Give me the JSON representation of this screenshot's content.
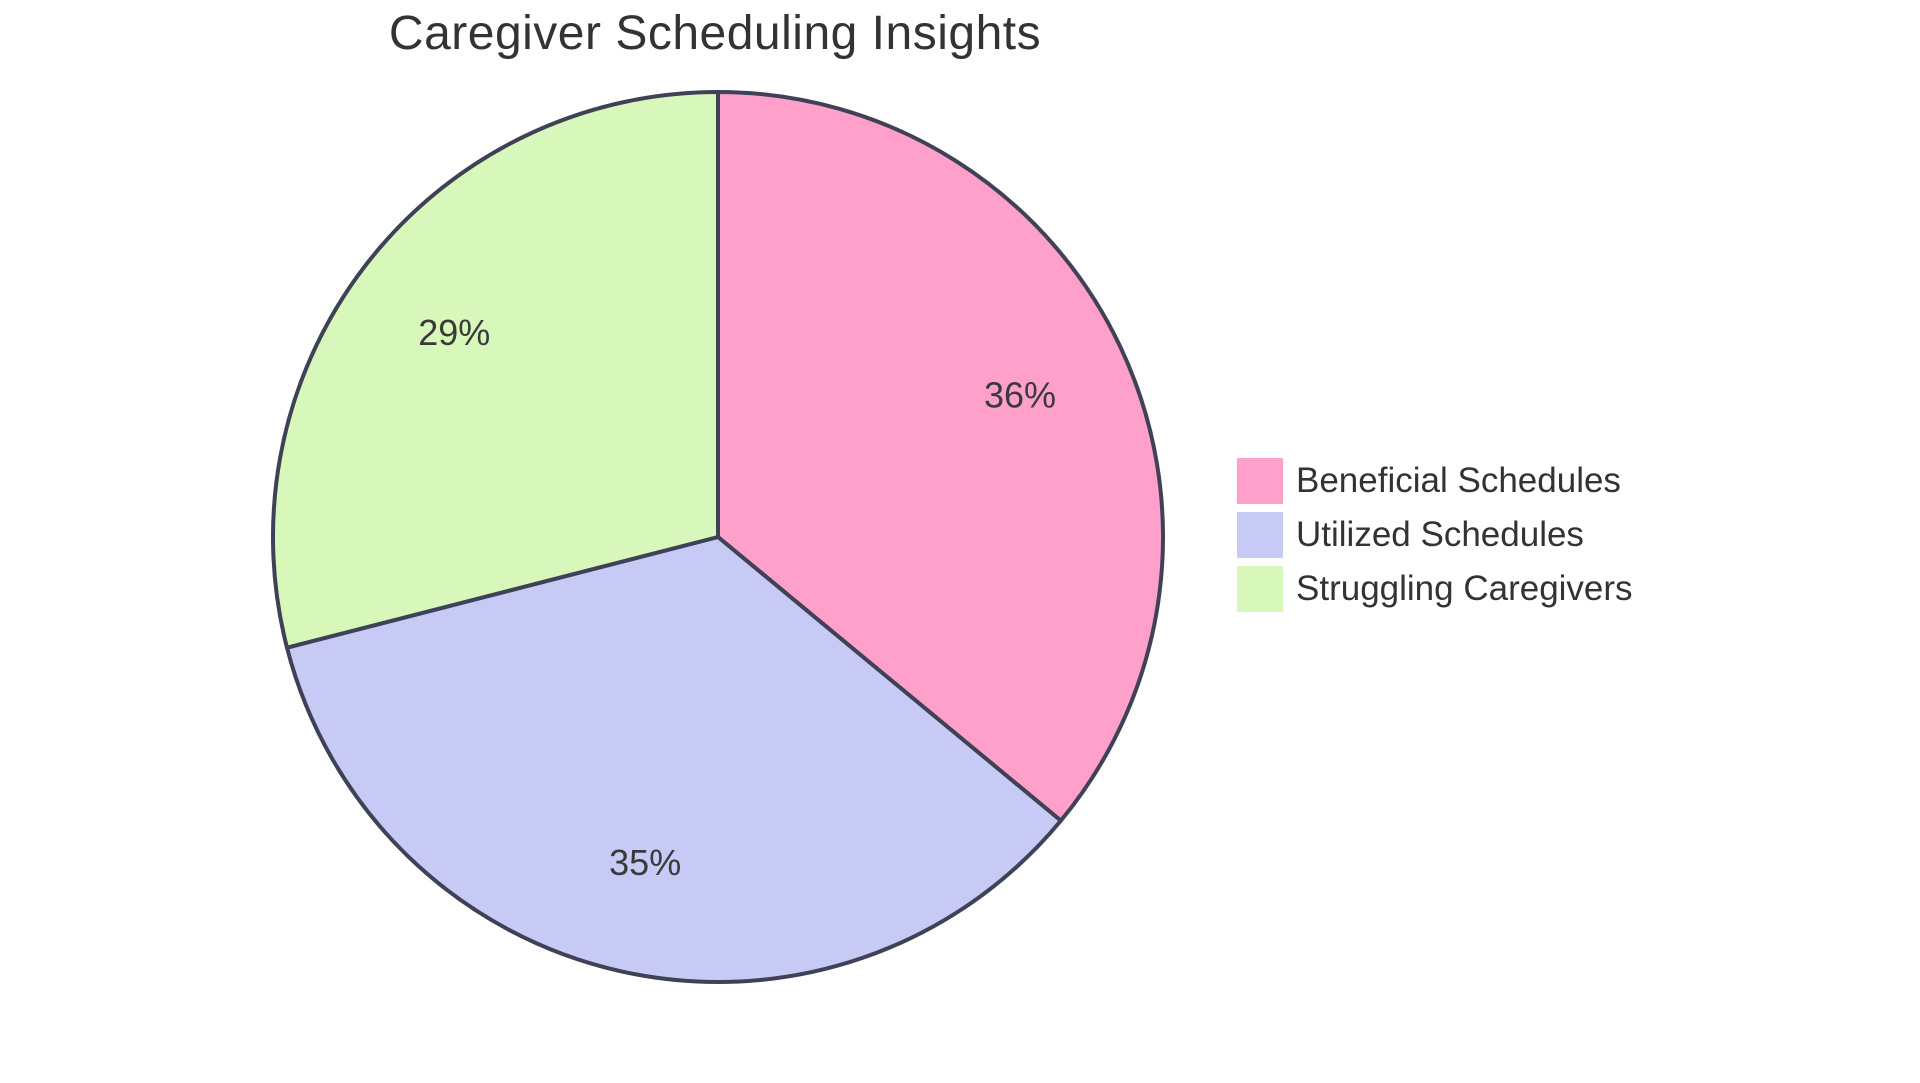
{
  "chart_data": {
    "type": "pie",
    "title": "Caregiver Scheduling Insights",
    "series": [
      {
        "name": "Beneficial Schedules",
        "value": 36,
        "label": "36%",
        "color": "#FFA0CA"
      },
      {
        "name": "Utilized Schedules",
        "value": 35,
        "label": "35%",
        "color": "#C8CAF6"
      },
      {
        "name": "Struggling Caregivers",
        "value": 29,
        "label": "29%",
        "color": "#D7F8BA"
      }
    ],
    "start_position": "12-oclock",
    "direction": "clockwise",
    "stroke_color": "#3F4256",
    "stroke_width": 4,
    "label_color": "#3A3A3A",
    "title_color": "#333333",
    "legend_position": "right",
    "background": "#FFFFFF"
  }
}
